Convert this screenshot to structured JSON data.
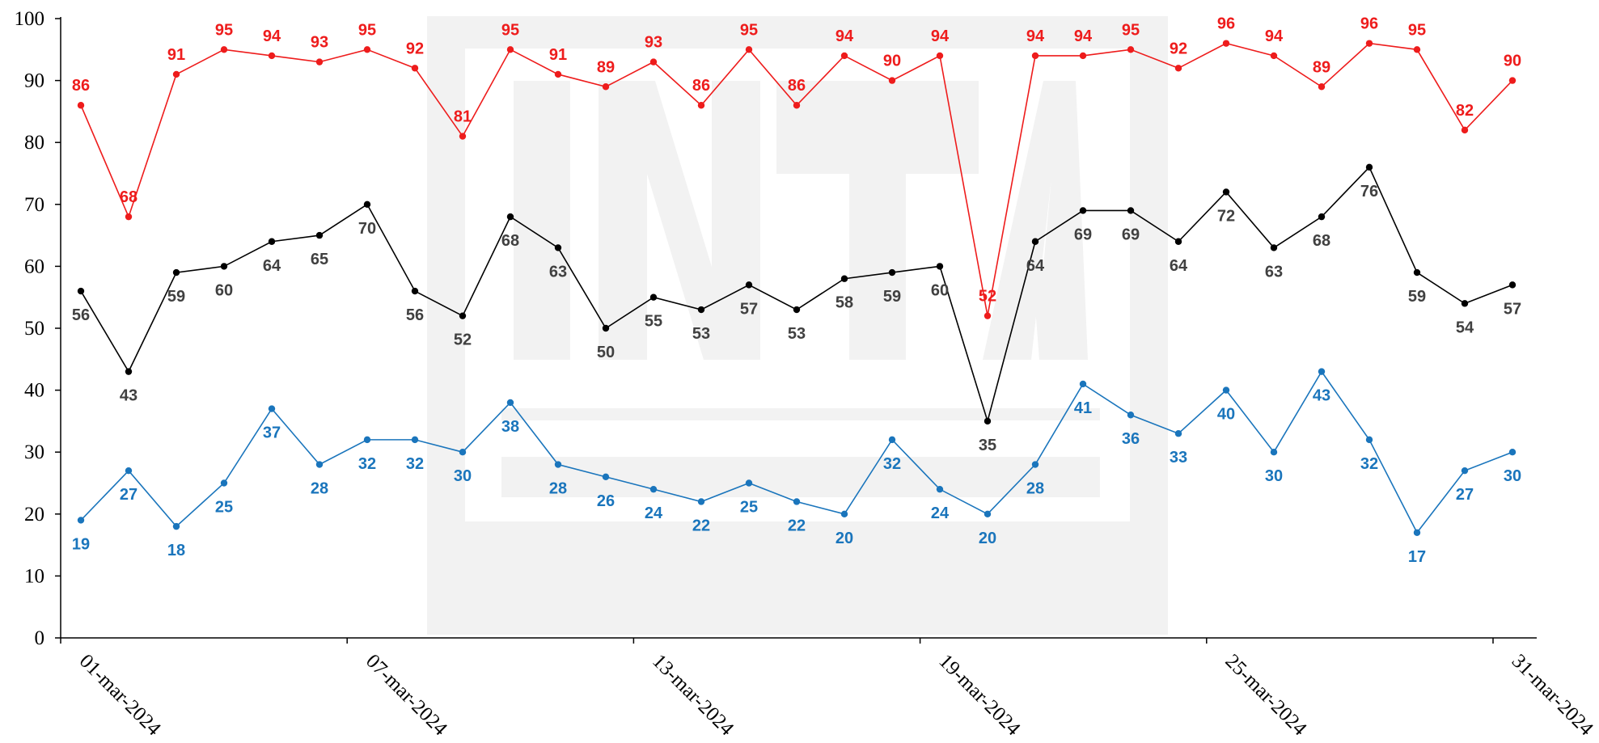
{
  "chart_data": {
    "type": "line",
    "x": [
      "01-mar-2024",
      "02-mar-2024",
      "03-mar-2024",
      "04-mar-2024",
      "05-mar-2024",
      "06-mar-2024",
      "07-mar-2024",
      "08-mar-2024",
      "09-mar-2024",
      "10-mar-2024",
      "11-mar-2024",
      "12-mar-2024",
      "13-mar-2024",
      "14-mar-2024",
      "15-mar-2024",
      "16-mar-2024",
      "17-mar-2024",
      "18-mar-2024",
      "19-mar-2024",
      "20-mar-2024",
      "21-mar-2024",
      "22-mar-2024",
      "23-mar-2024",
      "24-mar-2024",
      "25-mar-2024",
      "26-mar-2024",
      "27-mar-2024",
      "28-mar-2024",
      "29-mar-2024",
      "30-mar-2024",
      "31-mar-2024"
    ],
    "x_tick_labels": [
      "01-mar-2024",
      "07-mar-2024",
      "13-mar-2024",
      "19-mar-2024",
      "25-mar-2024",
      "31-mar-2024"
    ],
    "x_tick_index": [
      0,
      6,
      12,
      18,
      24,
      30
    ],
    "y_ticks": [
      0,
      10,
      20,
      30,
      40,
      50,
      60,
      70,
      80,
      90,
      100
    ],
    "ylim": [
      0,
      100
    ],
    "title": "",
    "xlabel": "",
    "ylabel": "",
    "grid": false,
    "watermark": "INTA",
    "series": [
      {
        "color": "#ee1c1c",
        "label_position": "above",
        "values": [
          86,
          68,
          91,
          95,
          94,
          93,
          95,
          92,
          81,
          95,
          91,
          89,
          93,
          86,
          95,
          86,
          94,
          90,
          94,
          52,
          94,
          94,
          95,
          92,
          96,
          94,
          89,
          96,
          95,
          82,
          90
        ]
      },
      {
        "color": "#000000",
        "label_color": "#404040",
        "label_position": "below",
        "values": [
          56,
          43,
          59,
          60,
          64,
          65,
          70,
          56,
          52,
          68,
          63,
          50,
          55,
          53,
          57,
          53,
          58,
          59,
          60,
          35,
          64,
          69,
          69,
          64,
          72,
          63,
          68,
          76,
          59,
          54,
          57
        ]
      },
      {
        "color": "#1a75bc",
        "label_position": "below",
        "values": [
          19,
          27,
          18,
          25,
          37,
          28,
          32,
          32,
          30,
          38,
          28,
          26,
          24,
          22,
          25,
          22,
          20,
          32,
          24,
          20,
          28,
          41,
          36,
          33,
          40,
          30,
          43,
          32,
          17,
          27,
          30
        ]
      }
    ]
  }
}
